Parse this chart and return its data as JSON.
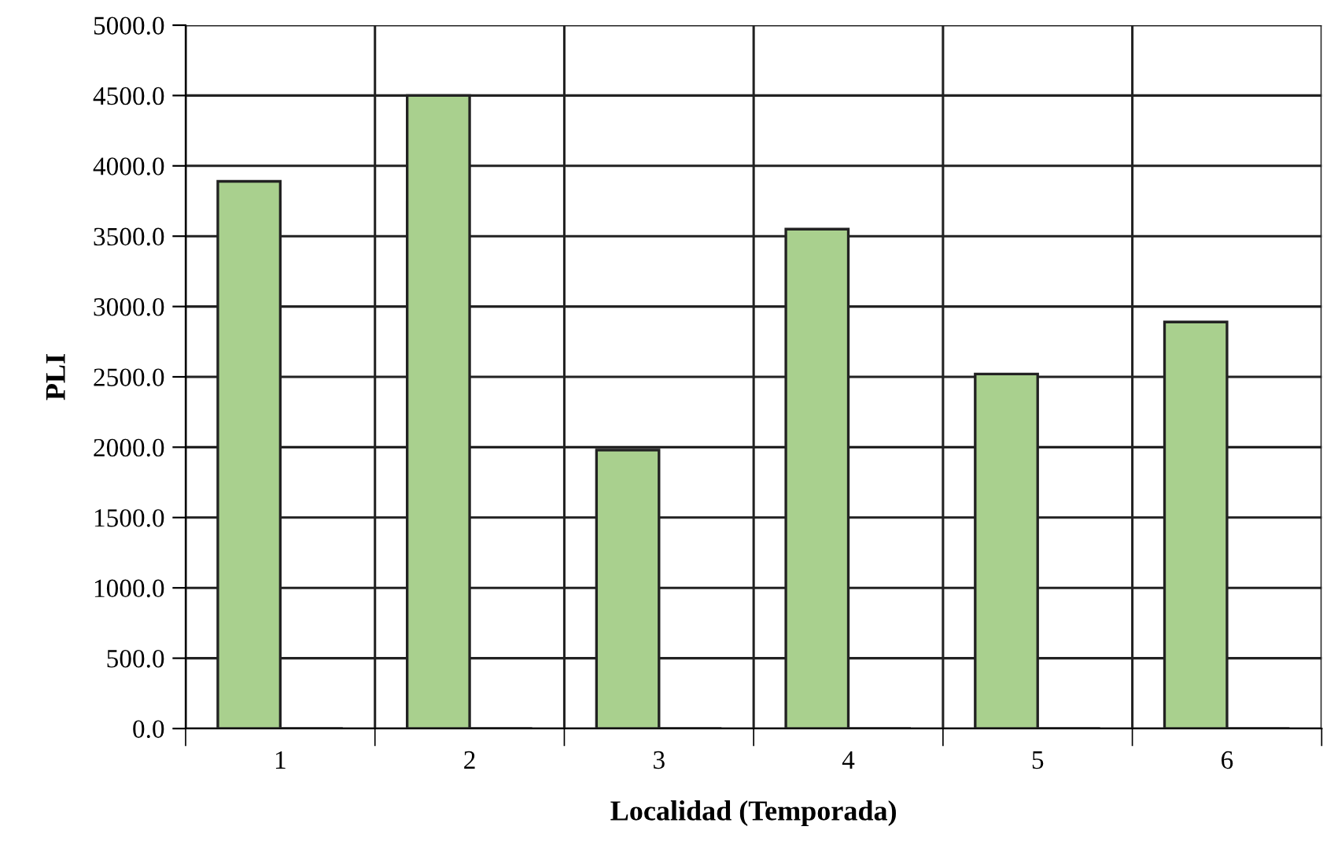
{
  "chart_data": {
    "type": "bar",
    "xlabel": "Localidad (Temporada)",
    "ylabel": "PLI",
    "categories": [
      "1",
      "2",
      "3",
      "4",
      "5",
      "6"
    ],
    "series": [
      {
        "color": "#a9d08e",
        "values": [
          3890,
          4500,
          1980,
          3550,
          2520,
          2890
        ]
      },
      {
        "color": "#222222",
        "values": [
          0,
          0,
          0,
          0,
          0,
          0
        ]
      }
    ],
    "ylim": [
      0,
      5000
    ],
    "yticks": [
      {
        "value": 0,
        "label": "0.0"
      },
      {
        "value": 500,
        "label": "500.0"
      },
      {
        "value": 1000,
        "label": "1000.0"
      },
      {
        "value": 1500,
        "label": "1500.0"
      },
      {
        "value": 2000,
        "label": "2000.0"
      },
      {
        "value": 2500,
        "label": "2500.0"
      },
      {
        "value": 3000,
        "label": "3000.0"
      },
      {
        "value": 3500,
        "label": "3500.0"
      },
      {
        "value": 4000,
        "label": "4000.0"
      },
      {
        "value": 4500,
        "label": "4500.0"
      },
      {
        "value": 5000,
        "label": "5000.0"
      }
    ],
    "grid": true,
    "legend": false
  }
}
